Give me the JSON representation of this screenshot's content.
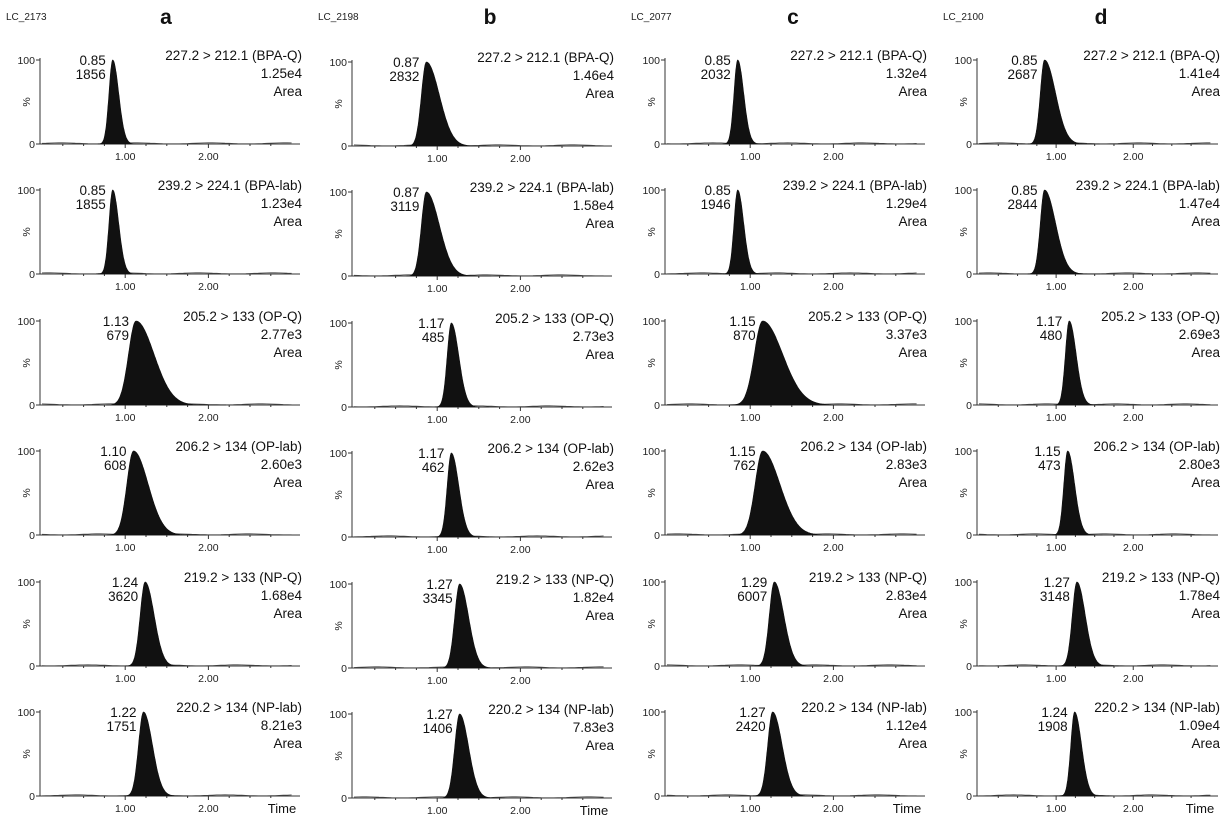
{
  "chart_data": [
    {
      "type": "area",
      "column": "a",
      "sample_id": "LC_2173",
      "x_axis_label": "Time",
      "x_ticks": [
        "1.00",
        "2.00"
      ],
      "xlim": [
        0,
        3
      ],
      "y_ticks": [
        "100",
        "0"
      ],
      "ylabel": "%",
      "ylim": [
        0,
        100
      ],
      "panels": [
        {
          "transition": "227.2 > 212.1 (BPA-Q)",
          "quantity": "1.25e4",
          "mode": "Area",
          "retention_time": "0.85",
          "peak_area": "1856",
          "rt": 0.85,
          "width": 0.045,
          "tail": 1.6
        },
        {
          "transition": "239.2 > 224.1 (BPA-lab)",
          "quantity": "1.23e4",
          "mode": "Area",
          "retention_time": "0.85",
          "peak_area": "1855",
          "rt": 0.85,
          "width": 0.045,
          "tail": 1.6
        },
        {
          "transition": "205.2 > 133 (OP-Q)",
          "quantity": "2.77e3",
          "mode": "Area",
          "retention_time": "1.13",
          "peak_area": "679",
          "rt": 1.13,
          "width": 0.09,
          "tail": 2.4
        },
        {
          "transition": "206.2 > 134 (OP-lab)",
          "quantity": "2.60e3",
          "mode": "Area",
          "retention_time": "1.10",
          "peak_area": "608",
          "rt": 1.1,
          "width": 0.08,
          "tail": 2.2
        },
        {
          "transition": "219.2 > 133 (NP-Q)",
          "quantity": "1.68e4",
          "mode": "Area",
          "retention_time": "1.24",
          "peak_area": "3620",
          "rt": 1.24,
          "width": 0.06,
          "tail": 1.8
        },
        {
          "transition": "220.2 > 134 (NP-lab)",
          "quantity": "8.21e3",
          "mode": "Area",
          "retention_time": "1.22",
          "peak_area": "1751",
          "rt": 1.22,
          "width": 0.06,
          "tail": 1.8
        }
      ]
    },
    {
      "type": "area",
      "column": "b",
      "sample_id": "LC_2198",
      "x_axis_label": "Time",
      "x_ticks": [
        "1.00",
        "2.00"
      ],
      "xlim": [
        0,
        3
      ],
      "y_ticks": [
        "100",
        "0"
      ],
      "ylabel": "%",
      "ylim": [
        0,
        100
      ],
      "panels": [
        {
          "transition": "227.2 > 212.1 (BPA-Q)",
          "quantity": "1.46e4",
          "mode": "Area",
          "retention_time": "0.87",
          "peak_area": "2832",
          "rt": 0.87,
          "width": 0.06,
          "tail": 2.6
        },
        {
          "transition": "239.2 > 224.1 (BPA-lab)",
          "quantity": "1.58e4",
          "mode": "Area",
          "retention_time": "0.87",
          "peak_area": "3119",
          "rt": 0.87,
          "width": 0.06,
          "tail": 2.6
        },
        {
          "transition": "205.2 > 133 (OP-Q)",
          "quantity": "2.73e3",
          "mode": "Area",
          "retention_time": "1.17",
          "peak_area": "485",
          "rt": 1.17,
          "width": 0.05,
          "tail": 1.8
        },
        {
          "transition": "206.2 > 134 (OP-lab)",
          "quantity": "2.62e3",
          "mode": "Area",
          "retention_time": "1.17",
          "peak_area": "462",
          "rt": 1.17,
          "width": 0.05,
          "tail": 1.8
        },
        {
          "transition": "219.2 > 133 (NP-Q)",
          "quantity": "1.82e4",
          "mode": "Area",
          "retention_time": "1.27",
          "peak_area": "3345",
          "rt": 1.27,
          "width": 0.06,
          "tail": 1.8
        },
        {
          "transition": "220.2 > 134 (NP-lab)",
          "quantity": "7.83e3",
          "mode": "Area",
          "retention_time": "1.27",
          "peak_area": "1406",
          "rt": 1.27,
          "width": 0.06,
          "tail": 1.8
        }
      ]
    },
    {
      "type": "area",
      "column": "c",
      "sample_id": "LC_2077",
      "x_axis_label": "Time",
      "x_ticks": [
        "1.00",
        "2.00"
      ],
      "xlim": [
        0,
        3
      ],
      "y_ticks": [
        "100",
        "0"
      ],
      "ylabel": "%",
      "ylim": [
        0,
        100
      ],
      "panels": [
        {
          "transition": "227.2 > 212.1 (BPA-Q)",
          "quantity": "1.32e4",
          "mode": "Area",
          "retention_time": "0.85",
          "peak_area": "2032",
          "rt": 0.85,
          "width": 0.045,
          "tail": 1.6
        },
        {
          "transition": "239.2 > 224.1 (BPA-lab)",
          "quantity": "1.29e4",
          "mode": "Area",
          "retention_time": "0.85",
          "peak_area": "1946",
          "rt": 0.85,
          "width": 0.045,
          "tail": 1.6
        },
        {
          "transition": "205.2 > 133 (OP-Q)",
          "quantity": "3.37e3",
          "mode": "Area",
          "retention_time": "1.15",
          "peak_area": "870",
          "rt": 1.15,
          "width": 0.1,
          "tail": 2.4
        },
        {
          "transition": "206.2 > 134 (OP-lab)",
          "quantity": "2.83e3",
          "mode": "Area",
          "retention_time": "1.15",
          "peak_area": "762",
          "rt": 1.15,
          "width": 0.09,
          "tail": 2.3
        },
        {
          "transition": "219.2 > 133 (NP-Q)",
          "quantity": "2.83e4",
          "mode": "Area",
          "retention_time": "1.29",
          "peak_area": "6007",
          "rt": 1.29,
          "width": 0.06,
          "tail": 1.9
        },
        {
          "transition": "220.2 > 134 (NP-lab)",
          "quantity": "1.12e4",
          "mode": "Area",
          "retention_time": "1.27",
          "peak_area": "2420",
          "rt": 1.27,
          "width": 0.06,
          "tail": 1.9
        }
      ]
    },
    {
      "type": "area",
      "column": "d",
      "sample_id": "LC_2100",
      "x_axis_label": "Time",
      "x_ticks": [
        "1.00",
        "2.00"
      ],
      "xlim": [
        0,
        3
      ],
      "y_ticks": [
        "100",
        "0"
      ],
      "ylabel": "%",
      "ylim": [
        0,
        100
      ],
      "panels": [
        {
          "transition": "227.2 > 212.1 (BPA-Q)",
          "quantity": "1.41e4",
          "mode": "Area",
          "retention_time": "0.85",
          "peak_area": "2687",
          "rt": 0.85,
          "width": 0.055,
          "tail": 2.6
        },
        {
          "transition": "239.2 > 224.1 (BPA-lab)",
          "quantity": "1.47e4",
          "mode": "Area",
          "retention_time": "0.85",
          "peak_area": "2844",
          "rt": 0.85,
          "width": 0.055,
          "tail": 2.6
        },
        {
          "transition": "205.2 > 133 (OP-Q)",
          "quantity": "2.69e3",
          "mode": "Area",
          "retention_time": "1.17",
          "peak_area": "480",
          "rt": 1.17,
          "width": 0.05,
          "tail": 1.8
        },
        {
          "transition": "206.2 > 134 (OP-lab)",
          "quantity": "2.80e3",
          "mode": "Area",
          "retention_time": "1.15",
          "peak_area": "473",
          "rt": 1.15,
          "width": 0.05,
          "tail": 1.8
        },
        {
          "transition": "219.2 > 133 (NP-Q)",
          "quantity": "1.78e4",
          "mode": "Area",
          "retention_time": "1.27",
          "peak_area": "3148",
          "rt": 1.27,
          "width": 0.06,
          "tail": 1.8
        },
        {
          "transition": "220.2 > 134 (NP-lab)",
          "quantity": "1.09e4",
          "mode": "Area",
          "retention_time": "1.24",
          "peak_area": "1908",
          "rt": 1.24,
          "width": 0.05,
          "tail": 1.8
        }
      ]
    }
  ]
}
